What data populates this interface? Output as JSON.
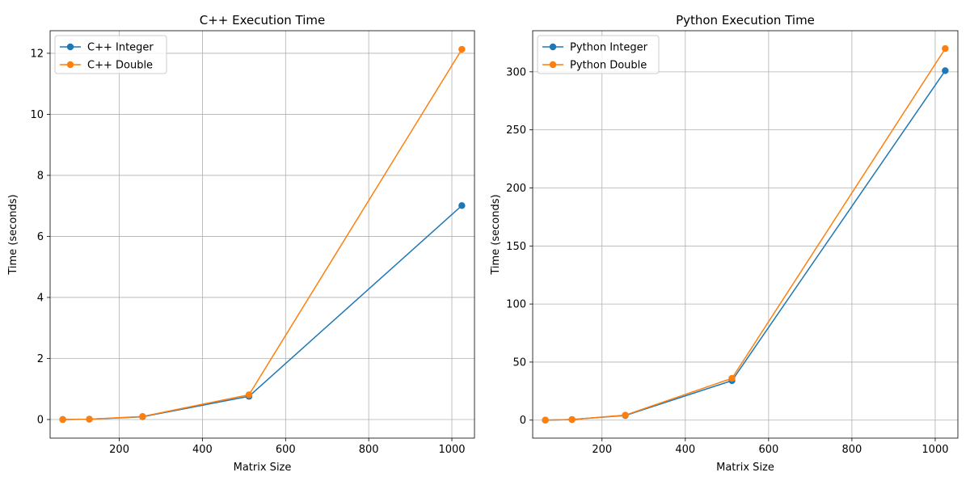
{
  "chart_data": [
    {
      "type": "line",
      "title": "C++ Execution Time",
      "xlabel": "Matrix Size",
      "ylabel": "Time (seconds)",
      "xlim": [
        33.6,
        1054.4
      ],
      "ylim": [
        -0.61,
        12.74
      ],
      "xticks": [
        200,
        400,
        600,
        800,
        1000
      ],
      "yticks": [
        0,
        2,
        4,
        6,
        8,
        10,
        12
      ],
      "grid": true,
      "legend_position": "top-left",
      "x": [
        64,
        128,
        256,
        512,
        1024
      ],
      "series": [
        {
          "name": "C++ Integer",
          "color": "#1f77b4",
          "marker": "circle",
          "values": [
            0.0,
            0.01,
            0.09,
            0.76,
            7.01
          ]
        },
        {
          "name": "C++ Double",
          "color": "#ff7f0e",
          "marker": "circle",
          "values": [
            0.0,
            0.01,
            0.1,
            0.81,
            12.13
          ]
        }
      ]
    },
    {
      "type": "line",
      "title": "Python Execution Time",
      "xlabel": "Matrix Size",
      "ylabel": "Time (seconds)",
      "xlim": [
        33.6,
        1054.4
      ],
      "ylim": [
        -15.5,
        335.4
      ],
      "xticks": [
        200,
        400,
        600,
        800,
        1000
      ],
      "yticks": [
        0,
        50,
        100,
        150,
        200,
        250,
        300
      ],
      "grid": true,
      "legend_position": "top-left",
      "x": [
        64,
        128,
        256,
        512,
        1024
      ],
      "series": [
        {
          "name": "Python Integer",
          "color": "#1f77b4",
          "marker": "circle",
          "values": [
            0.0,
            0.5,
            4.0,
            34.0,
            301.0
          ]
        },
        {
          "name": "Python Double",
          "color": "#ff7f0e",
          "marker": "circle",
          "values": [
            0.0,
            0.5,
            4.3,
            36.0,
            320.0
          ]
        }
      ]
    }
  ]
}
